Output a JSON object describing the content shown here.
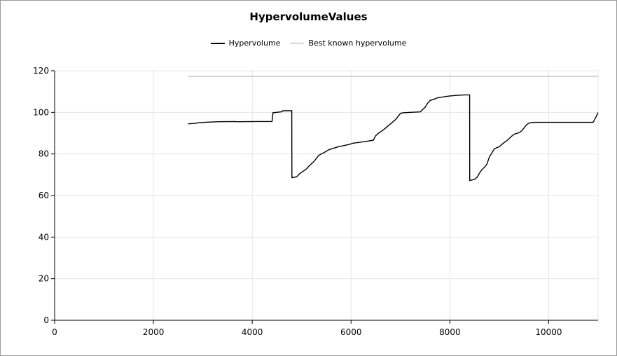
{
  "chart_data": {
    "type": "line",
    "title": "HypervolumeValues",
    "xlabel": "",
    "ylabel": "",
    "xlim": [
      0,
      11000
    ],
    "ylim": [
      0,
      120
    ],
    "xticks": [
      0,
      2000,
      4000,
      6000,
      8000,
      10000
    ],
    "yticks": [
      0,
      20,
      40,
      60,
      80,
      100,
      120
    ],
    "grid": true,
    "legend_position": "top-center",
    "series": [
      {
        "name": "Hypervolume",
        "color": "#000000",
        "x": [
          2700,
          2850,
          2900,
          3100,
          3300,
          3650,
          3700,
          4100,
          4400,
          4420,
          4600,
          4620,
          4800,
          4802,
          4900,
          4950,
          5000,
          5100,
          5150,
          5250,
          5350,
          5450,
          5550,
          5650,
          5750,
          5850,
          5950,
          6050,
          6150,
          6400,
          6450,
          6500,
          6550,
          6650,
          6700,
          6800,
          6900,
          7000,
          7050,
          7200,
          7400,
          7450,
          7500,
          7550,
          7600,
          7700,
          7750,
          7850,
          8000,
          8150,
          8300,
          8400,
          8402,
          8500,
          8550,
          8600,
          8650,
          8700,
          8750,
          8800,
          8850,
          8900,
          9000,
          9050,
          9100,
          9150,
          9250,
          9300,
          9400,
          9450,
          9500,
          9550,
          9600,
          9650,
          9700,
          9750,
          10000,
          10500,
          10900,
          10950,
          11000
        ],
        "values": [
          94.5,
          94.7,
          95.0,
          95.3,
          95.5,
          95.6,
          95.5,
          95.6,
          95.6,
          99.8,
          100.3,
          100.8,
          100.8,
          68.6,
          69.0,
          70.3,
          71.2,
          72.8,
          74.2,
          76.4,
          79.4,
          80.6,
          82.0,
          82.8,
          83.5,
          84.0,
          84.5,
          85.2,
          85.5,
          86.4,
          86.6,
          88.8,
          89.9,
          91.5,
          92.5,
          94.5,
          96.5,
          99.5,
          99.8,
          100.0,
          100.2,
          101.4,
          102.5,
          104.4,
          105.7,
          106.5,
          107.0,
          107.4,
          107.9,
          108.2,
          108.4,
          108.4,
          67.2,
          67.8,
          68.8,
          70.8,
          72.5,
          73.6,
          75.1,
          78.6,
          80.5,
          82.5,
          83.5,
          84.5,
          85.5,
          86.3,
          88.5,
          89.5,
          90.2,
          91.0,
          92.5,
          94.0,
          94.8,
          95.1,
          95.2,
          95.2,
          95.2,
          95.2,
          95.2,
          97.5,
          99.9
        ]
      },
      {
        "name": "Best known hypervolume",
        "color": "#a9a9a9",
        "x": [
          2700,
          11000
        ],
        "values": [
          117.3,
          117.3
        ]
      }
    ]
  }
}
